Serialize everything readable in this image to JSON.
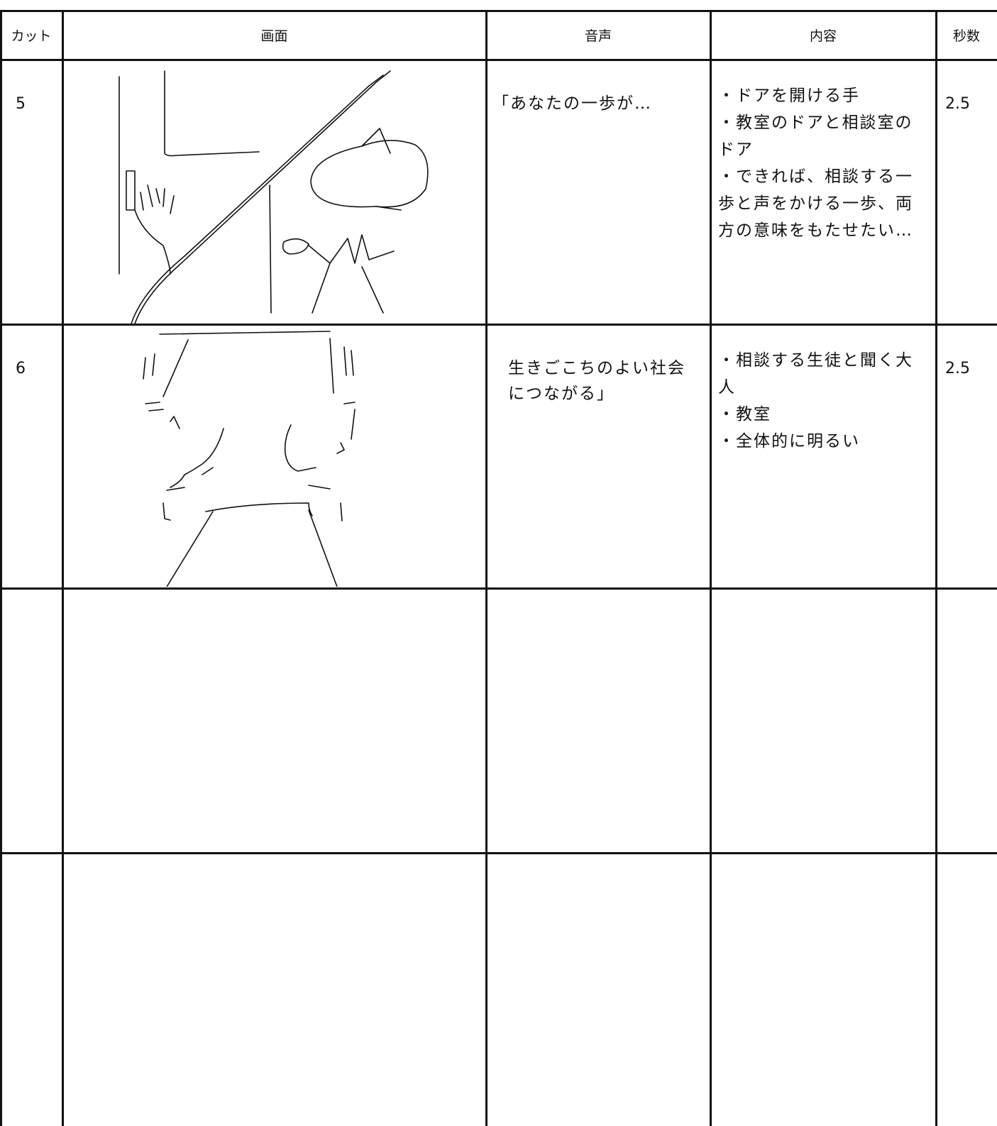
{
  "header": {
    "columns": [
      "カット",
      "画面",
      "音声",
      "内容",
      "秒数"
    ]
  },
  "rows": [
    {
      "cut": 5,
      "voice": "「あなたの一歩が…",
      "content": [
        "・ドアを開ける手",
        "・教室のドアと相談室のドア",
        "・できれば、相談する一歩と声をかける一歩、両方の意味をもたせたい…"
      ],
      "seconds": 2.5
    },
    {
      "cut": 6,
      "voice": "生きごこちのよい社会につながる」",
      "content": [
        "・相談する生徒と聞く大人",
        "・教室",
        "・全体的に明るい"
      ],
      "seconds": 2.5
    }
  ]
}
